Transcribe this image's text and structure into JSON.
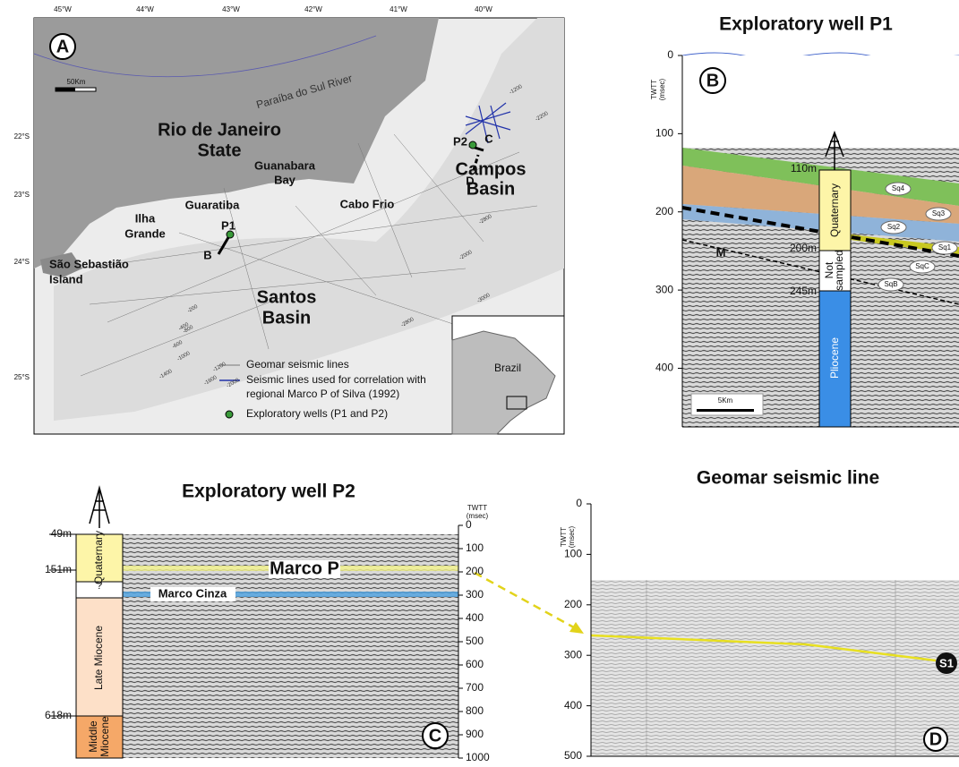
{
  "panel_a": {
    "label": "A",
    "longitudes": [
      "45°W",
      "44°W",
      "43°W",
      "42°W",
      "41°W",
      "40°W"
    ],
    "latitudes": [
      "22°S",
      "23°S",
      "24°S",
      "25°S"
    ],
    "scale": "50Km",
    "river": "Paraíba do Sul River",
    "state": [
      "Rio de Janeiro",
      "State"
    ],
    "bay": [
      "Guanabara",
      "Bay"
    ],
    "cape": "Cabo Frio",
    "campos": [
      "Campos",
      "Basin"
    ],
    "guaratiba": "Guaratiba",
    "ilha_grande": [
      "Ilha",
      "Grande"
    ],
    "sao_sebastiao": [
      "São Sebastião",
      "Island"
    ],
    "santos": [
      "Santos",
      "Basin"
    ],
    "wells": [
      "P1",
      "P2"
    ],
    "line_ends": [
      "B",
      "C",
      "D"
    ],
    "contours": [
      "-200",
      "-400",
      "-600",
      "-800",
      "-1000",
      "-1200",
      "-1400",
      "-1600",
      "-2000",
      "-2000",
      "-2800",
      "-2800",
      "-3000",
      "-1200",
      "-2200"
    ],
    "legend": {
      "geomar": "Geomar seismic lines",
      "seismic": [
        "Seismic lines used for correlation with",
        "regional Marco P of Silva (1992)"
      ],
      "wells": "Exploratory wells (P1 and P2)"
    },
    "inset": "Brazil"
  },
  "panel_b": {
    "title": "Exploratory well P1",
    "label": "B",
    "axis_title": [
      "TWTT",
      "(msec)"
    ],
    "ylim": [
      0,
      475
    ],
    "yticks": [
      0,
      100,
      200,
      300,
      400
    ],
    "depths": [
      "110m",
      "200m",
      "245m"
    ],
    "units": {
      "quaternary": "Quaternary",
      "not_sampled": [
        "Not",
        "sampled"
      ],
      "pliocene": "Pliocene"
    },
    "horizons": [
      "Sq4",
      "Sq3",
      "Sq2",
      "Sq1",
      "SqC",
      "SqB",
      "M"
    ],
    "scale": "5Km"
  },
  "panel_c": {
    "title": "Exploratory well P2",
    "label": "C",
    "axis_title": [
      "TWTT",
      "(msec)"
    ],
    "ylim": [
      0,
      1000
    ],
    "yticks": [
      0,
      100,
      200,
      300,
      400,
      500,
      600,
      700,
      800,
      900,
      1000
    ],
    "depths": [
      "49m",
      "151m",
      "618m"
    ],
    "units": {
      "quaternary": "Quaternary",
      "unknown": "?",
      "late_miocene": "Late Miocene",
      "middle_miocene": [
        "Middle",
        "Miocene"
      ]
    },
    "horizons": [
      "Marco P",
      "Marco Cinza"
    ]
  },
  "panel_d": {
    "title": "Geomar seismic line",
    "label": "D",
    "axis_title": [
      "TWTT",
      "(msec)"
    ],
    "ylim": [
      0,
      500
    ],
    "yticks": [
      0,
      100,
      200,
      300,
      400,
      500
    ],
    "horizon": "S1"
  }
}
